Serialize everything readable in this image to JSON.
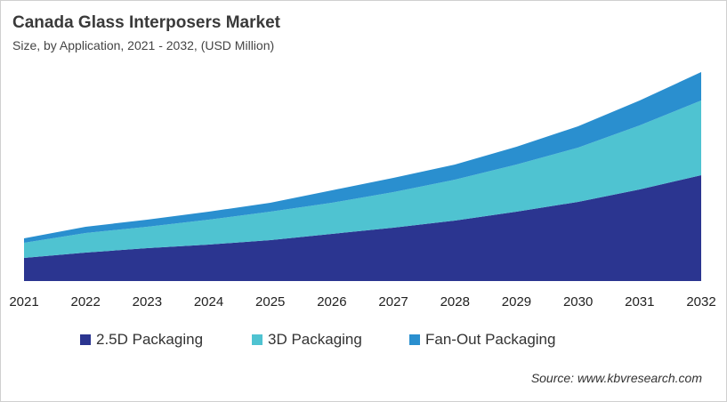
{
  "chart_data": {
    "type": "area",
    "stacked": true,
    "title": "Canada Glass Interposers Market",
    "subtitle": "Size, by Application, 2021 - 2032, (USD Million)",
    "categories": [
      "2021",
      "2022",
      "2023",
      "2024",
      "2025",
      "2026",
      "2027",
      "2028",
      "2029",
      "2030",
      "2031",
      "2032"
    ],
    "series": [
      {
        "name": "2.5D Packaging",
        "color": "#2b3590",
        "values": [
          26,
          32,
          37,
          41,
          46,
          53,
          60,
          68,
          78,
          89,
          103,
          119
        ]
      },
      {
        "name": "3D Packaging",
        "color": "#4fc3d1",
        "values": [
          17,
          22,
          24,
          28,
          32,
          35,
          40,
          46,
          53,
          61,
          72,
          84
        ]
      },
      {
        "name": "Fan-Out Packaging",
        "color": "#2a8fcf",
        "values": [
          5,
          7,
          8,
          9,
          10,
          14,
          16,
          17,
          20,
          24,
          28,
          32
        ]
      }
    ],
    "y_axis_shown": false,
    "grid": false,
    "legend_position": "bottom",
    "source": "Source: www.kbvresearch.com"
  }
}
